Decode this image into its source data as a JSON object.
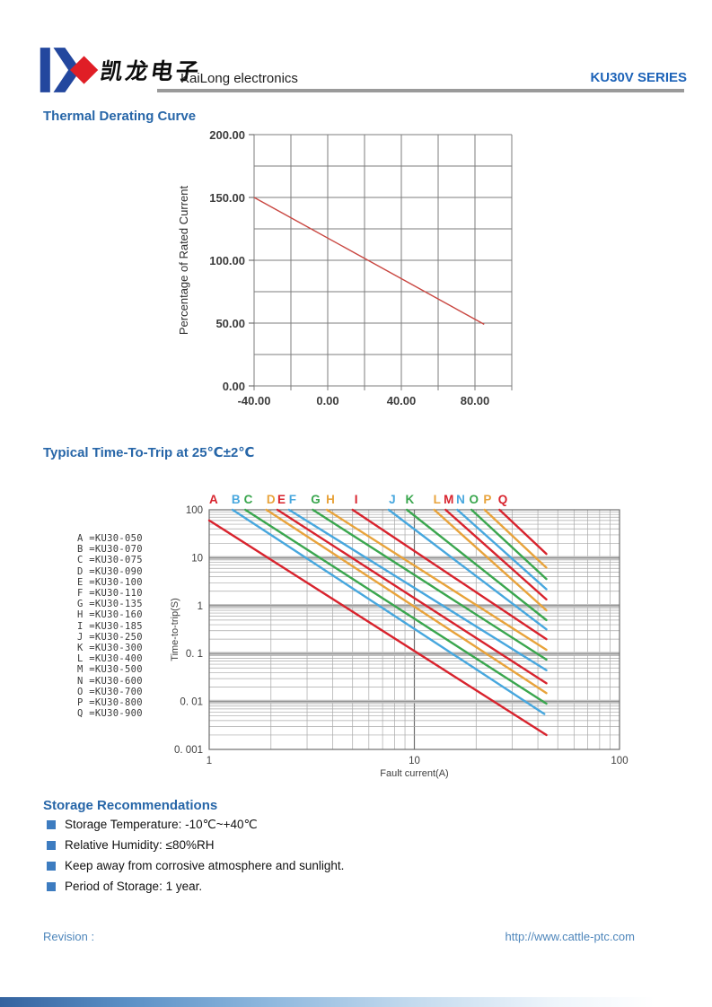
{
  "header": {
    "brand_cn": "凯龙电子",
    "company": "KaiLong electronics",
    "series_title": "KU30V SERIES"
  },
  "sections": {
    "derating_title": "Thermal Derating Curve",
    "trip_title": "Typical Time-To-Trip at 25℃±2℃",
    "storage_title": "Storage Recommendations"
  },
  "colors": {
    "heading_blue": "#2766a8",
    "series_blue": "#1d63b8",
    "footer_blue": "#4e86bb",
    "brand_blue": "#23479e",
    "brand_red": "#e01e26",
    "bullet_blue": "#3d7cc0",
    "divider_gray": "#9a9a9a",
    "curve_red": "#d8232d",
    "curve_cyan": "#47a7de",
    "curve_green": "#3aa64e",
    "curve_orange": "#e8a33b"
  },
  "chart_data": [
    {
      "id": "thermal_derating",
      "type": "line",
      "title": "Thermal Derating Curve",
      "xlabel": "",
      "ylabel": "Percentage of Rated Current",
      "xlim": [
        -40,
        100
      ],
      "ylim": [
        0,
        200
      ],
      "x_grid_step": 20,
      "y_grid_step": 25,
      "grid": true,
      "x_ticks": [
        {
          "v": -40,
          "label": "-40.00"
        },
        {
          "v": 0,
          "label": "0.00"
        },
        {
          "v": 40,
          "label": "40.00"
        },
        {
          "v": 80,
          "label": "80.00"
        }
      ],
      "y_ticks": [
        {
          "v": 0,
          "label": "0.00"
        },
        {
          "v": 50,
          "label": "50.00"
        },
        {
          "v": 100,
          "label": "100.00"
        },
        {
          "v": 150,
          "label": "150.00"
        },
        {
          "v": 200,
          "label": "200.00"
        }
      ],
      "series": [
        {
          "name": "derating-curve",
          "color": "#c94741",
          "points": [
            [
              -40,
              150
            ],
            [
              85,
              49
            ]
          ]
        }
      ]
    },
    {
      "id": "time_to_trip",
      "type": "line",
      "x_scale": "log",
      "y_scale": "log",
      "title": "Typical Time-To-Trip at 25℃±2℃",
      "xlabel": "Fault current(A)",
      "ylabel": "Time-to-trip(S)",
      "xlim": [
        1,
        100
      ],
      "ylim": [
        0.001,
        100
      ],
      "grid": true,
      "x_ticks": [
        {
          "v": 1,
          "label": "1"
        },
        {
          "v": 10,
          "label": "10"
        },
        {
          "v": 100,
          "label": "100"
        }
      ],
      "y_ticks": [
        {
          "v": 100,
          "label": "100"
        },
        {
          "v": 10,
          "label": "10"
        },
        {
          "v": 1,
          "label": "1"
        },
        {
          "v": 0.1,
          "label": "0. 1"
        },
        {
          "v": 0.01,
          "label": "0. 01"
        },
        {
          "v": 0.001,
          "label": "0. 001"
        }
      ],
      "series": [
        {
          "letter": "A",
          "model": "KU30-050",
          "color": "#d8232d",
          "label_x": 1.05,
          "points": [
            [
              1,
              60
            ],
            [
              44,
              0.002
            ]
          ]
        },
        {
          "letter": "B",
          "model": "KU30-070",
          "color": "#47a7de",
          "label_x": 1.35,
          "points": [
            [
              1.3,
              100
            ],
            [
              43,
              0.0055
            ]
          ]
        },
        {
          "letter": "C",
          "model": "KU30-075",
          "color": "#3aa64e",
          "label_x": 1.55,
          "points": [
            [
              1.5,
              100
            ],
            [
              44,
              0.009
            ]
          ]
        },
        {
          "letter": "D",
          "model": "KU30-090",
          "color": "#e8a33b",
          "label_x": 2.0,
          "points": [
            [
              1.9,
              100
            ],
            [
              44,
              0.015
            ]
          ]
        },
        {
          "letter": "E",
          "model": "KU30-100",
          "color": "#d8232d",
          "label_x": 2.25,
          "points": [
            [
              2.15,
              100
            ],
            [
              44,
              0.024
            ]
          ]
        },
        {
          "letter": "F",
          "model": "KU30-110",
          "color": "#47a7de",
          "label_x": 2.55,
          "points": [
            [
              2.45,
              100
            ],
            [
              44,
              0.045
            ]
          ]
        },
        {
          "letter": "G",
          "model": "KU30-135",
          "color": "#3aa64e",
          "label_x": 3.3,
          "points": [
            [
              3.2,
              100
            ],
            [
              44,
              0.075
            ]
          ]
        },
        {
          "letter": "H",
          "model": "KU30-160",
          "color": "#e8a33b",
          "label_x": 3.9,
          "points": [
            [
              3.75,
              100
            ],
            [
              44,
              0.12
            ]
          ]
        },
        {
          "letter": "I",
          "model": "KU30-185",
          "color": "#d8232d",
          "label_x": 5.2,
          "points": [
            [
              5,
              100
            ],
            [
              44,
              0.2
            ]
          ]
        },
        {
          "letter": "J",
          "model": "KU30-250",
          "color": "#47a7de",
          "label_x": 7.8,
          "points": [
            [
              7.5,
              100
            ],
            [
              44,
              0.32
            ]
          ]
        },
        {
          "letter": "K",
          "model": "KU30-300",
          "color": "#3aa64e",
          "label_x": 9.5,
          "points": [
            [
              9.2,
              100
            ],
            [
              44,
              0.5
            ]
          ]
        },
        {
          "letter": "L",
          "model": "KU30-400",
          "color": "#e8a33b",
          "label_x": 12.9,
          "points": [
            [
              12.5,
              100
            ],
            [
              44,
              0.8
            ]
          ]
        },
        {
          "letter": "M",
          "model": "KU30-500",
          "color": "#d8232d",
          "label_x": 14.7,
          "points": [
            [
              14.2,
              100
            ],
            [
              44,
              1.35
            ]
          ]
        },
        {
          "letter": "N",
          "model": "KU30-600",
          "color": "#47a7de",
          "label_x": 16.8,
          "points": [
            [
              16.2,
              100
            ],
            [
              44,
              2.2
            ]
          ]
        },
        {
          "letter": "O",
          "model": "KU30-700",
          "color": "#3aa64e",
          "label_x": 19.5,
          "points": [
            [
              19,
              100
            ],
            [
              44,
              3.6
            ]
          ]
        },
        {
          "letter": "P",
          "model": "KU30-800",
          "color": "#e8a33b",
          "label_x": 22.7,
          "points": [
            [
              22,
              100
            ],
            [
              44,
              6.2
            ]
          ]
        },
        {
          "letter": "Q",
          "model": "KU30-900",
          "color": "#d8232d",
          "label_x": 27,
          "points": [
            [
              26,
              100
            ],
            [
              44,
              12
            ]
          ]
        }
      ]
    }
  ],
  "storage": {
    "items": [
      "Storage Temperature: -10℃~+40℃",
      "Relative Humidity: ≤80%RH",
      "Keep away from corrosive atmosphere and sunlight.",
      "Period of Storage: 1 year."
    ]
  },
  "footer": {
    "revision_label": "Revision :",
    "url": "http://www.cattle-ptc.com"
  }
}
